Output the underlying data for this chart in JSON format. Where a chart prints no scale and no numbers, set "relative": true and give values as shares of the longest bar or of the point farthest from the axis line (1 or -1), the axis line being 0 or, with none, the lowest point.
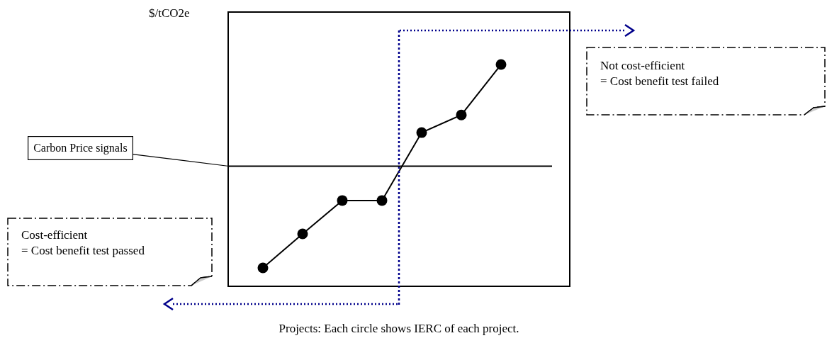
{
  "chart_data": {
    "type": "line",
    "relative": true,
    "categories": [
      null,
      null,
      null,
      null,
      null,
      null,
      null
    ],
    "values": [
      0.08,
      0.234,
      0.385,
      0.385,
      0.692,
      0.772,
      1
    ],
    "color": "#000000",
    "marker": "circle",
    "line_style": "solid",
    "ylabel": "$/tCO2e",
    "xlabel": "Projects: Each circle shows IERC of each project.",
    "ref_lines": [
      {
        "axis": "y",
        "value": 0.54,
        "label": "Carbon Price signals",
        "color": "#000000"
      }
    ],
    "annotations": [
      "Not cost-efficient\n= Cost benefit test failed",
      "Cost-efficient\n= Cost benefit test passed"
    ]
  }
}
